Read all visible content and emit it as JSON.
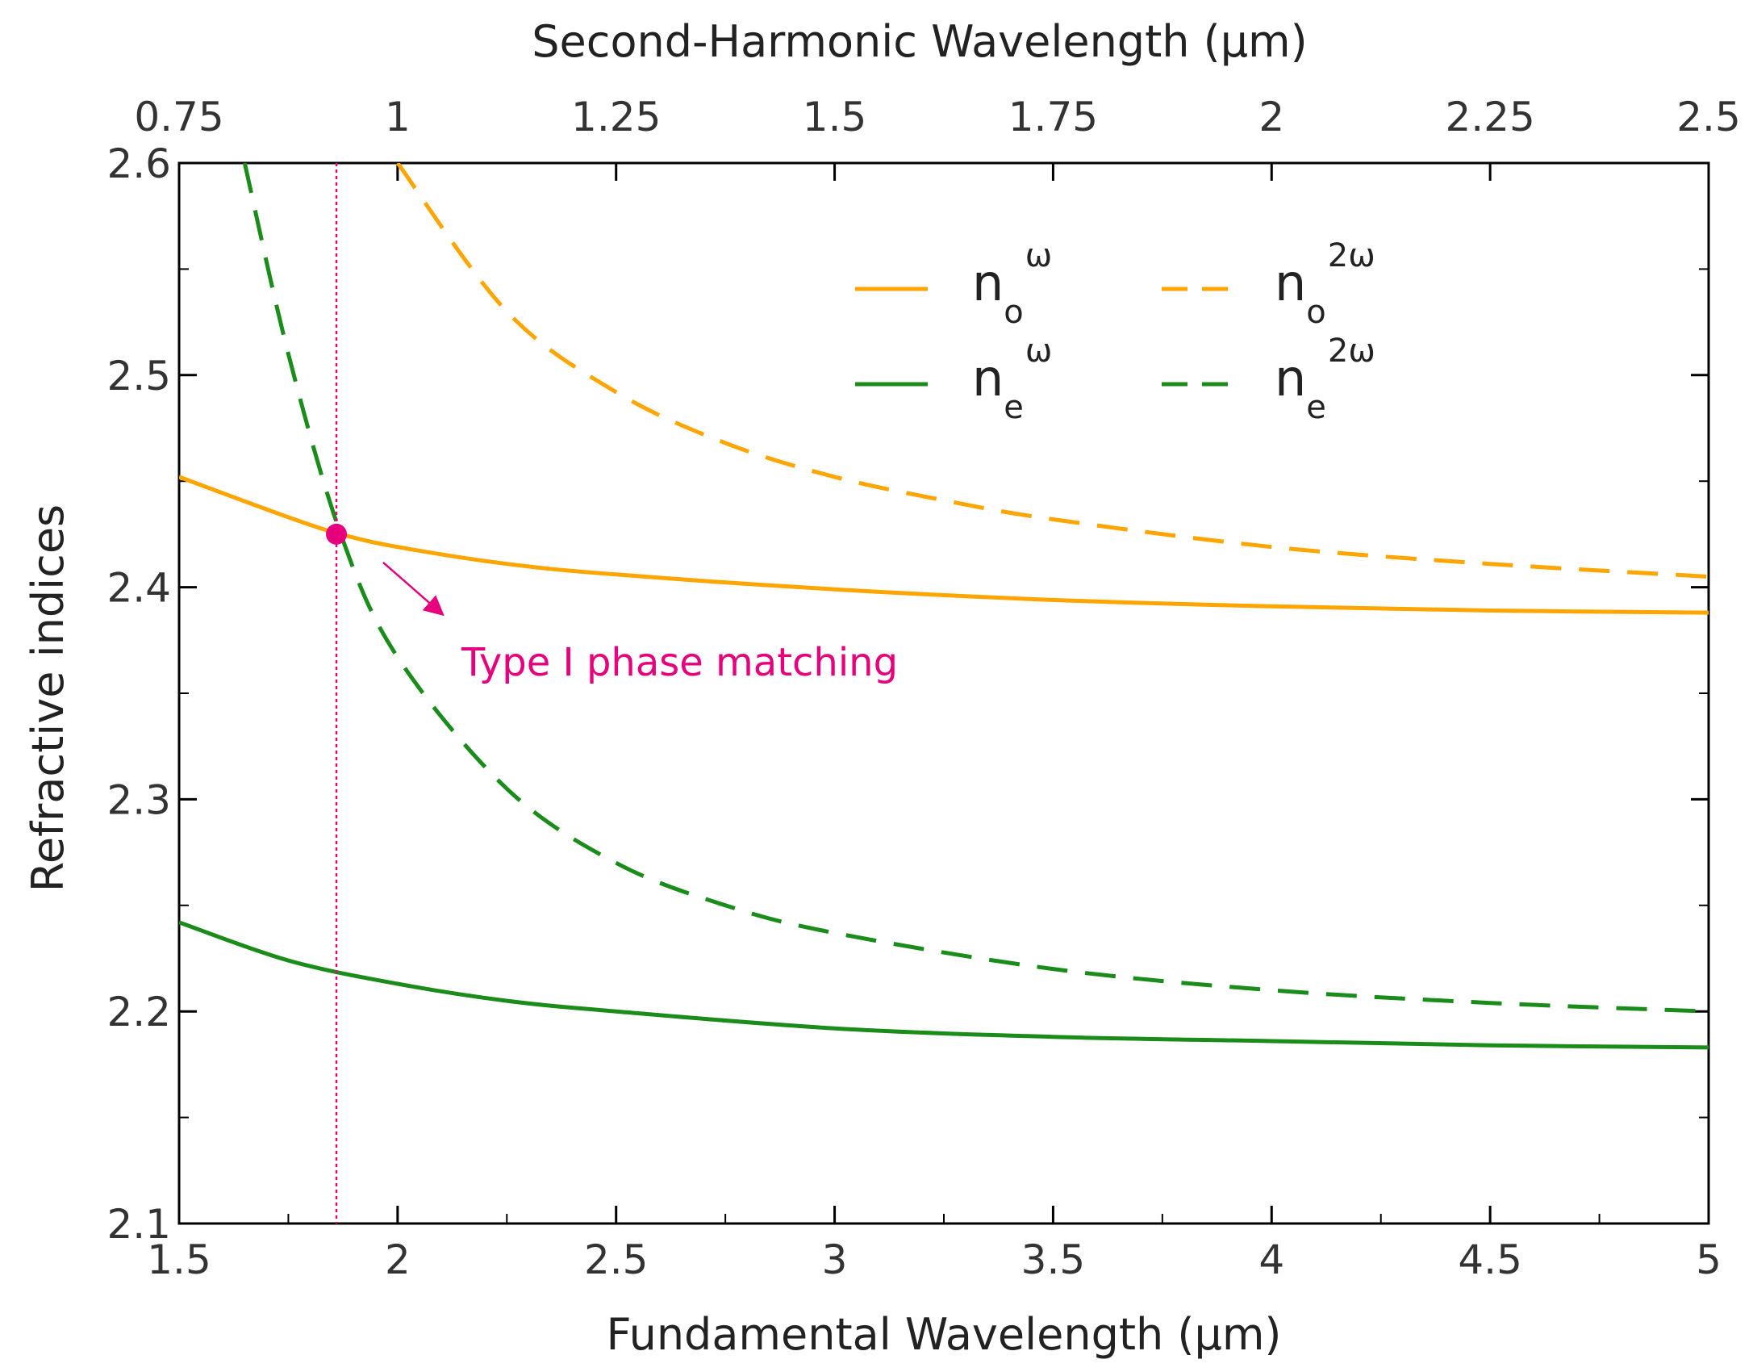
{
  "colors": {
    "orange": "#FFA500",
    "green": "#1A8C1A",
    "magenta": "#E6007E",
    "axis": "#000000"
  },
  "chart_data": {
    "type": "line",
    "title": "",
    "xlabel": "Fundamental Wavelength (μm)",
    "ylabel": "Refractive indices",
    "x2label": "Second-Harmonic Wavelength (μm)",
    "xlim": [
      1.5,
      5
    ],
    "ylim": [
      2.1,
      2.6
    ],
    "x2lim": [
      0.75,
      2.5
    ],
    "xticks": [
      "1.5",
      "2",
      "2.5",
      "3",
      "3.5",
      "4",
      "4.5",
      "5"
    ],
    "x2ticks": [
      "0.75",
      "1",
      "1.25",
      "1.5",
      "1.75",
      "2",
      "2.25",
      "2.5"
    ],
    "yticks": [
      "2.1",
      "2.2",
      "2.3",
      "2.4",
      "2.5",
      "2.6"
    ],
    "series": [
      {
        "name": "n_o^ω",
        "base": "n",
        "sub": "o",
        "sup": "ω",
        "color": "#FFA500",
        "dash": "solid",
        "x": [
          1.5,
          1.75,
          1.87,
          2.0,
          2.25,
          2.5,
          3.0,
          3.5,
          4.0,
          4.5,
          5.0
        ],
        "y": [
          2.452,
          2.433,
          2.425,
          2.419,
          2.411,
          2.406,
          2.399,
          2.394,
          2.391,
          2.389,
          2.388
        ]
      },
      {
        "name": "n_o^2ω",
        "base": "n",
        "sub": "o",
        "sup": "2ω",
        "color": "#FFA500",
        "dash": "dashed",
        "x": [
          2.0,
          2.25,
          2.5,
          2.75,
          3.0,
          3.25,
          3.5,
          4.0,
          4.5,
          5.0
        ],
        "y": [
          2.6,
          2.53,
          2.492,
          2.468,
          2.452,
          2.441,
          2.432,
          2.419,
          2.411,
          2.405
        ]
      },
      {
        "name": "n_e^ω",
        "base": "n",
        "sub": "e",
        "sup": "ω",
        "color": "#1A8C1A",
        "dash": "solid",
        "x": [
          1.5,
          1.75,
          2.0,
          2.25,
          2.5,
          3.0,
          3.5,
          4.0,
          4.5,
          5.0
        ],
        "y": [
          2.242,
          2.224,
          2.213,
          2.205,
          2.2,
          2.192,
          2.188,
          2.186,
          2.184,
          2.183
        ]
      },
      {
        "name": "n_e^2ω",
        "base": "n",
        "sub": "e",
        "sup": "2ω",
        "color": "#1A8C1A",
        "dash": "dashed",
        "x": [
          1.65,
          1.75,
          1.87,
          2.0,
          2.25,
          2.5,
          2.75,
          3.0,
          3.5,
          4.0,
          4.5,
          5.0
        ],
        "y": [
          2.6,
          2.51,
          2.425,
          2.367,
          2.305,
          2.27,
          2.25,
          2.237,
          2.22,
          2.21,
          2.204,
          2.2
        ]
      }
    ],
    "phase_match": {
      "x": 1.86,
      "y": 2.425,
      "label": "Type I phase matching"
    },
    "legend_position": "top-right"
  }
}
